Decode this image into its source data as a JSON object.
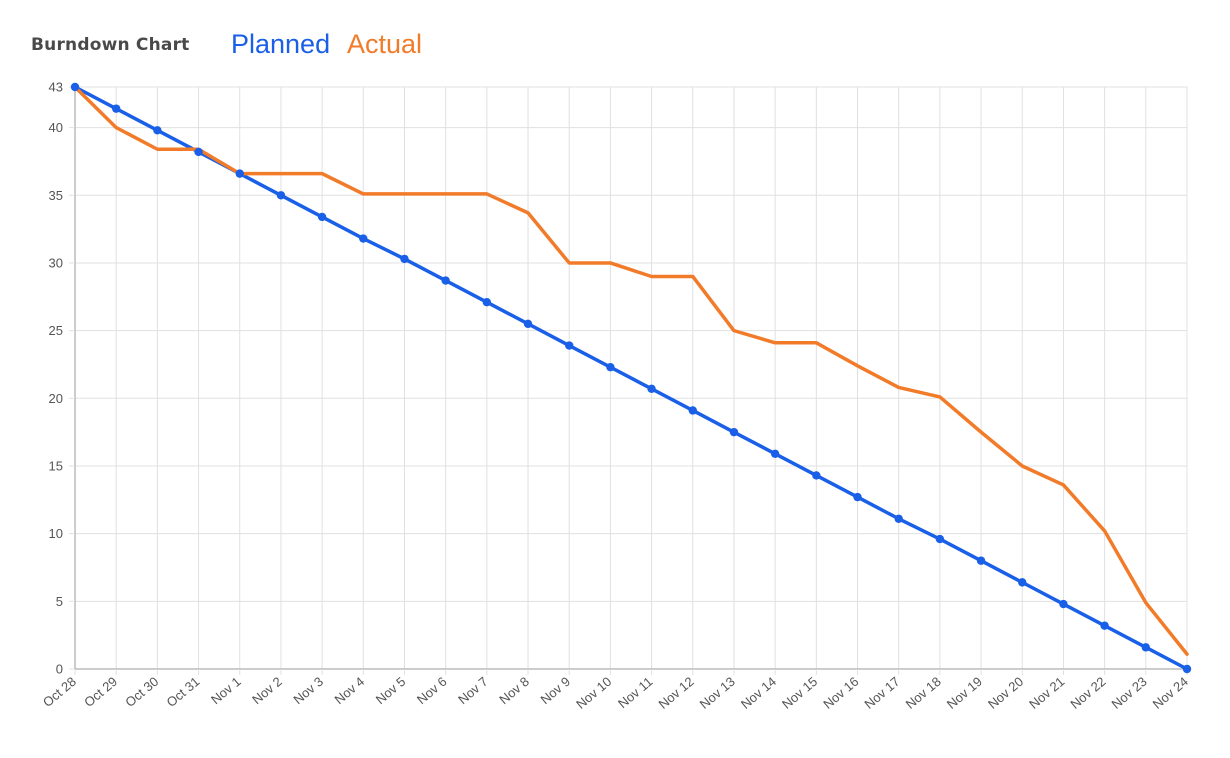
{
  "title": "Burndown Chart",
  "colors": {
    "planned": "#1a5fe8",
    "actual": "#f27b2a",
    "grid": "#e0e0e0",
    "axis": "#9a9a9a"
  },
  "chart_data": {
    "type": "line",
    "title": "Burndown Chart",
    "xlabel": "",
    "ylabel": "",
    "ylim": [
      0,
      43
    ],
    "yticks": [
      0,
      5,
      10,
      15,
      20,
      25,
      30,
      35,
      40,
      43
    ],
    "grid": true,
    "legend_position": "top-left",
    "categories": [
      "Oct 28",
      "Oct 29",
      "Oct 30",
      "Oct 31",
      "Nov 1",
      "Nov 2",
      "Nov 3",
      "Nov 4",
      "Nov 5",
      "Nov 6",
      "Nov 7",
      "Nov 8",
      "Nov 9",
      "Nov 10",
      "Nov 11",
      "Nov 12",
      "Nov 13",
      "Nov 14",
      "Nov 15",
      "Nov 16",
      "Nov 17",
      "Nov 18",
      "Nov 19",
      "Nov 20",
      "Nov 21",
      "Nov 22",
      "Nov 23",
      "Nov 24"
    ],
    "series": [
      {
        "name": "Planned",
        "color": "#1a5fe8",
        "markers": true,
        "values": [
          43,
          41.4,
          39.8,
          38.2,
          36.6,
          35.0,
          33.4,
          31.8,
          30.3,
          28.7,
          27.1,
          25.5,
          23.9,
          22.3,
          20.7,
          19.1,
          17.5,
          15.9,
          14.3,
          12.7,
          11.1,
          9.6,
          8.0,
          6.4,
          4.8,
          3.2,
          1.6,
          0
        ]
      },
      {
        "name": "Actual",
        "color": "#f27b2a",
        "markers": false,
        "values": [
          43,
          40,
          38.4,
          38.4,
          36.6,
          36.6,
          36.6,
          35.1,
          35.1,
          35.1,
          35.1,
          33.7,
          30.0,
          30.0,
          29.0,
          29.0,
          25.0,
          24.1,
          24.1,
          22.4,
          20.8,
          20.1,
          17.5,
          15.0,
          13.6,
          10.2,
          4.9,
          1.1
        ]
      }
    ]
  }
}
